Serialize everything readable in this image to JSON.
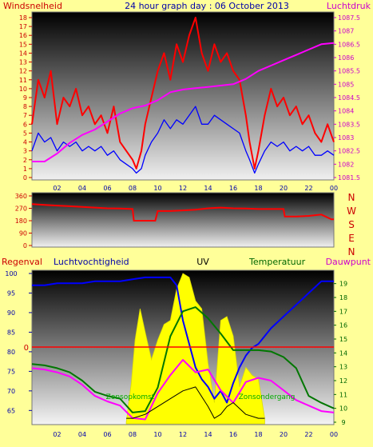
{
  "colors": {
    "background": "#ffff99",
    "wind": "#ff0000",
    "pressure": "#ff00ff",
    "wind_avg": "#0000ff",
    "humidity": "#0000ff",
    "temperature": "#007700",
    "dewpoint": "#ff00ff",
    "uv": "#ffff00",
    "rain": "#ff0000",
    "solar": "#000000",
    "axis_red": "#cc0000",
    "axis_magenta": "#cc00cc",
    "axis_blue": "#0000aa",
    "axis_green": "#006600"
  },
  "chart_data": [
    {
      "type": "line",
      "title": "24 hour graph day : 06 October 2013",
      "left_label": "Windsnelheid",
      "right_label": "Luchtdruk",
      "x_ticks": [
        "02",
        "04",
        "06",
        "08",
        "10",
        "12",
        "14",
        "16",
        "18",
        "20",
        "22",
        "00"
      ],
      "x_range_hours": [
        0,
        24
      ],
      "y_left_range": [
        0,
        18
      ],
      "y_left_ticks": [
        "0",
        "1",
        "2",
        "3",
        "4",
        "5",
        "6",
        "7",
        "8",
        "9",
        "10",
        "11",
        "12",
        "13",
        "14",
        "15",
        "16",
        "17",
        "18"
      ],
      "y_right_range": [
        1081.5,
        1087.5
      ],
      "y_right_ticks": [
        "1081.5",
        "1082",
        "1082.5",
        "1083",
        "1083.5",
        "1084",
        "1084.5",
        "1085",
        "1085.5",
        "1086",
        "1086.5",
        "1087",
        "1087.5"
      ],
      "series": [
        {
          "name": "wind_gust",
          "hours": [
            0,
            0.5,
            1,
            1.5,
            2,
            2.5,
            3,
            3.5,
            4,
            4.5,
            5,
            5.5,
            6,
            6.5,
            7,
            7.5,
            8,
            8.3,
            8.7,
            9,
            9.5,
            10,
            10.5,
            11,
            11.5,
            12,
            12.5,
            13,
            13.5,
            14,
            14.5,
            15,
            15.5,
            16,
            16.5,
            17,
            17.3,
            17.7,
            18,
            18.5,
            19,
            19.5,
            20,
            20.5,
            21,
            21.5,
            22,
            22.5,
            23,
            23.5,
            24
          ],
          "values": [
            6,
            11,
            9,
            12,
            6,
            9,
            8,
            10,
            7,
            8,
            6,
            7,
            5,
            8,
            4,
            3,
            2,
            1,
            3,
            6,
            9,
            12,
            14,
            11,
            15,
            13,
            16,
            18,
            14,
            12,
            15,
            13,
            14,
            12,
            11,
            7,
            4,
            1,
            3,
            7,
            10,
            8,
            9,
            7,
            8,
            6,
            7,
            5,
            4,
            6,
            4
          ]
        },
        {
          "name": "wind_average",
          "hours": [
            0,
            0.5,
            1,
            1.5,
            2,
            2.5,
            3,
            3.5,
            4,
            4.5,
            5,
            5.5,
            6,
            6.5,
            7,
            7.5,
            8,
            8.3,
            8.7,
            9,
            9.5,
            10,
            10.5,
            11,
            11.5,
            12,
            12.5,
            13,
            13.5,
            14,
            14.5,
            15,
            15.5,
            16,
            16.5,
            17,
            17.3,
            17.7,
            18,
            18.5,
            19,
            19.5,
            20,
            20.5,
            21,
            21.5,
            22,
            22.5,
            23,
            23.5,
            24
          ],
          "values": [
            3,
            5,
            4,
            4.5,
            3,
            4,
            3.5,
            4,
            3,
            3.5,
            3,
            3.5,
            2.5,
            3,
            2,
            1.5,
            1,
            0.5,
            1,
            2.5,
            4,
            5,
            6.5,
            5.5,
            6.5,
            6,
            7,
            8,
            6,
            6,
            7,
            6.5,
            6,
            5.5,
            5,
            3,
            2,
            0.5,
            1.5,
            3,
            4,
            3.5,
            4,
            3,
            3.5,
            3,
            3.5,
            2.5,
            2.5,
            3,
            2.5
          ]
        },
        {
          "name": "pressure",
          "axis": "right",
          "hours": [
            0,
            1,
            2,
            3,
            4,
            5,
            6,
            7,
            8,
            9,
            10,
            11,
            12,
            13,
            14,
            15,
            16,
            17,
            18,
            19,
            20,
            21,
            22,
            23,
            24
          ],
          "values": [
            1082.1,
            1082.1,
            1082.4,
            1082.8,
            1083.1,
            1083.3,
            1083.6,
            1083.9,
            1084.1,
            1084.2,
            1084.4,
            1084.7,
            1084.8,
            1084.85,
            1084.9,
            1084.95,
            1085.0,
            1085.2,
            1085.5,
            1085.7,
            1085.9,
            1086.1,
            1086.3,
            1086.5,
            1086.55
          ]
        }
      ]
    },
    {
      "type": "line",
      "title": "",
      "right_label": "N W S E N",
      "right_labels": [
        "N",
        "W",
        "S",
        "E",
        "N"
      ],
      "x_range_hours": [
        0,
        24
      ],
      "y_range": [
        0,
        360
      ],
      "y_ticks": [
        "0",
        "90",
        "180",
        "270",
        "360"
      ],
      "series": [
        {
          "name": "wind_direction",
          "hours": [
            0,
            1,
            2,
            3,
            4,
            5,
            6,
            7,
            8,
            8.1,
            9,
            9.8,
            10,
            11,
            12,
            13,
            14,
            15,
            16,
            17,
            18,
            19,
            20,
            20.1,
            21,
            22,
            23,
            23.8,
            24
          ],
          "values": [
            300,
            295,
            290,
            285,
            280,
            275,
            270,
            268,
            265,
            180,
            180,
            180,
            250,
            250,
            255,
            260,
            270,
            275,
            270,
            268,
            265,
            265,
            265,
            210,
            210,
            215,
            225,
            190,
            190
          ]
        }
      ]
    },
    {
      "type": "line",
      "title": "",
      "labels": {
        "rain": "Regenval",
        "humidity": "Luchtvochtigheid",
        "uv": "UV",
        "temperature": "Temperatuur",
        "dewpoint": "Dauwpunt",
        "sunrise": "Zonsopkomst",
        "sunset": "Zonsondergang"
      },
      "x_ticks": [
        "02",
        "04",
        "06",
        "08",
        "10",
        "12",
        "14",
        "16",
        "18",
        "20",
        "22",
        "00"
      ],
      "x_range_hours": [
        0,
        24
      ],
      "y_left_range": [
        62,
        100
      ],
      "y_left_ticks": [
        "65",
        "70",
        "75",
        "80",
        "85",
        "90",
        "95",
        "100"
      ],
      "y_right_range": [
        9,
        19.5
      ],
      "y_right_ticks": [
        "9",
        "10",
        "11",
        "12",
        "13",
        "14",
        "15",
        "16",
        "17",
        "18",
        "19"
      ],
      "rain_zero_label": "0",
      "series": [
        {
          "name": "humidity",
          "axis": "left",
          "hours": [
            0,
            1,
            2,
            3,
            4,
            5,
            6,
            7,
            8,
            9,
            10,
            11,
            11.5,
            12,
            12.5,
            13,
            13.5,
            14,
            14.5,
            15,
            15.5,
            16,
            16.5,
            17,
            17.5,
            18,
            19,
            20,
            21,
            22,
            23,
            24
          ],
          "values": [
            97,
            97,
            97.5,
            97.5,
            97.5,
            98,
            98,
            98,
            98.5,
            99,
            99,
            99,
            97,
            88,
            82,
            76,
            73,
            71,
            68,
            70,
            67,
            72,
            76,
            79,
            81,
            82,
            86,
            89,
            92,
            95,
            98,
            98
          ]
        },
        {
          "name": "temperature",
          "axis": "right",
          "hours": [
            0,
            1,
            2,
            3,
            4,
            5,
            6,
            7,
            8,
            9,
            10,
            11,
            12,
            13,
            14,
            15,
            16,
            17,
            18,
            19,
            20,
            21,
            22,
            23,
            24
          ],
          "values": [
            13.2,
            13.1,
            12.9,
            12.6,
            12.0,
            11.2,
            10.9,
            10.7,
            9.7,
            9.8,
            11.5,
            15.2,
            17.0,
            17.3,
            16.5,
            15.4,
            14.2,
            14.2,
            14.2,
            14.1,
            13.7,
            12.9,
            10.9,
            10.4,
            10.0
          ]
        },
        {
          "name": "dewpoint",
          "axis": "right",
          "hours": [
            0,
            1,
            2,
            3,
            4,
            5,
            6,
            7,
            8,
            9,
            10,
            11,
            12,
            13,
            14,
            15,
            16,
            17,
            18,
            19,
            20,
            21,
            22,
            23,
            24
          ],
          "values": [
            12.9,
            12.8,
            12.6,
            12.3,
            11.7,
            10.9,
            10.5,
            10.2,
            9.3,
            9.2,
            11.1,
            12.4,
            13.5,
            12.6,
            12.8,
            11.3,
            10.4,
            11.9,
            12.2,
            12.0,
            11.3,
            10.6,
            10.2,
            9.8,
            9.7
          ]
        },
        {
          "name": "uv",
          "axis": "left",
          "hours": [
            7.5,
            7.9,
            8.2,
            8.6,
            9,
            9.5,
            10,
            10.5,
            11,
            11.5,
            12,
            12.5,
            13,
            13.5,
            14,
            14.5,
            15,
            15.5,
            16,
            16.5,
            17,
            17.5,
            18,
            18.5
          ],
          "values": [
            62,
            72,
            83,
            91,
            85,
            78,
            83,
            87,
            88,
            96,
            100,
            99,
            93,
            91,
            77,
            67,
            88,
            89,
            84,
            71,
            76,
            74,
            73,
            63
          ]
        },
        {
          "name": "solar",
          "axis": "left",
          "hours": [
            7.5,
            8,
            9,
            10,
            11,
            12,
            13,
            14,
            14.5,
            15,
            15.5,
            16,
            17,
            18,
            18.5
          ],
          "values": [
            63,
            63,
            64,
            66,
            68,
            70,
            71,
            66,
            63,
            64,
            66,
            67,
            64,
            63,
            63
          ]
        }
      ]
    }
  ]
}
